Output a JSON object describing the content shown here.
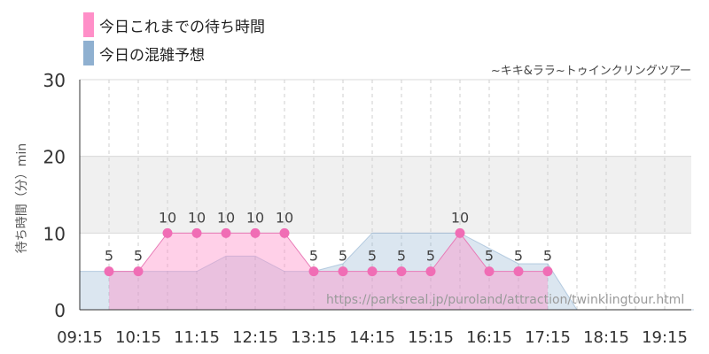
{
  "legend": [
    {
      "label": "今日これまでの待ち時間",
      "color": "#ff8fc8"
    },
    {
      "label": "今日の混雑予想",
      "color": "#8fb0d0"
    }
  ],
  "subtitle": "~キキ&ララ~トゥインクリングツアー",
  "watermark": "https://parksreal.jp/puroland/attraction/twinklingtour.html",
  "chart_data": {
    "type": "line",
    "ylabel": "待ち時間（分）min",
    "ylim": [
      0,
      30
    ],
    "yticks": [
      0,
      10,
      20,
      30
    ],
    "xticks": [
      "09:15",
      "10:15",
      "11:15",
      "12:15",
      "13:15",
      "14:15",
      "15:15",
      "16:15",
      "17:15",
      "18:15",
      "19:15"
    ],
    "grid": true,
    "shaded_band": [
      10,
      20
    ],
    "series": [
      {
        "name": "今日これまでの待ち時間",
        "color": "#ff8fc8",
        "type": "area-line",
        "x": [
          "09:45",
          "10:15",
          "10:45",
          "11:15",
          "11:45",
          "12:15",
          "12:45",
          "13:15",
          "13:45",
          "14:15",
          "14:45",
          "15:15",
          "15:45",
          "16:15",
          "16:45",
          "17:15"
        ],
        "values": [
          5,
          5,
          10,
          10,
          10,
          10,
          10,
          5,
          5,
          5,
          5,
          5,
          10,
          5,
          5,
          5
        ],
        "labels": [
          "5",
          "5",
          "10",
          "10",
          "10",
          "10",
          "10",
          "5",
          "5",
          "5",
          "5",
          "5",
          "10",
          "5",
          "5",
          "5"
        ]
      },
      {
        "name": "今日の混雑予想",
        "color": "#8fb0d0",
        "type": "area",
        "x": [
          "09:15",
          "09:45",
          "10:15",
          "10:45",
          "11:15",
          "11:45",
          "12:15",
          "12:45",
          "13:15",
          "13:45",
          "14:15",
          "14:45",
          "15:15",
          "15:45",
          "16:15",
          "16:45",
          "17:15",
          "17:45",
          "18:15",
          "18:45",
          "19:15",
          "19:45"
        ],
        "values": [
          5,
          5,
          5,
          5,
          5,
          7,
          7,
          5,
          5,
          6,
          10,
          10,
          10,
          10,
          8,
          6,
          6,
          0,
          0,
          0,
          0,
          0
        ]
      }
    ]
  }
}
